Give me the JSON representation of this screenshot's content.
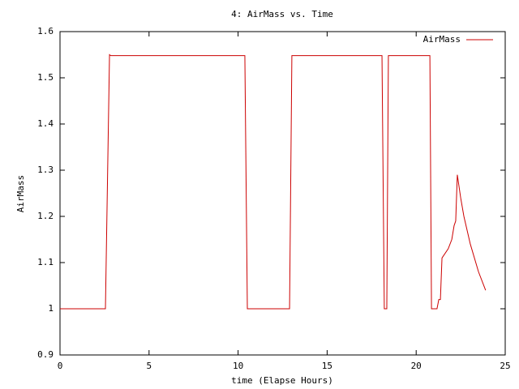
{
  "chart_data": {
    "type": "line",
    "title": "4: AirMass vs. Time",
    "x_label": "time (Elapse Hours)",
    "y_label": "AirMass",
    "legend": "top-right",
    "grid": false,
    "xlim": [
      0,
      25
    ],
    "xticks": [
      0,
      5,
      10,
      15,
      20,
      25
    ],
    "ylim": [
      0.9,
      1.6
    ],
    "yticks": [
      0.9,
      1,
      1.1,
      1.2,
      1.3,
      1.4,
      1.5,
      1.6
    ],
    "series": [
      {
        "name": "AirMass",
        "color": "#cc0000",
        "x": [
          0,
          2.55,
          2.78,
          2.85,
          10.38,
          10.52,
          12.89,
          13.02,
          18.08,
          18.21,
          18.35,
          18.44,
          20.77,
          20.86,
          21.17,
          21.27,
          21.36,
          21.45,
          21.8,
          22.0,
          22.13,
          22.22,
          22.31,
          22.5,
          22.68,
          23.04,
          23.5,
          23.9
        ],
        "values": [
          1.0,
          1.0,
          1.55,
          1.548,
          1.548,
          1.0,
          1.0,
          1.548,
          1.548,
          1.0,
          1.0,
          1.548,
          1.548,
          1.0,
          1.0,
          1.02,
          1.02,
          1.11,
          1.13,
          1.15,
          1.18,
          1.19,
          1.29,
          1.24,
          1.2,
          1.14,
          1.08,
          1.04
        ]
      }
    ]
  }
}
